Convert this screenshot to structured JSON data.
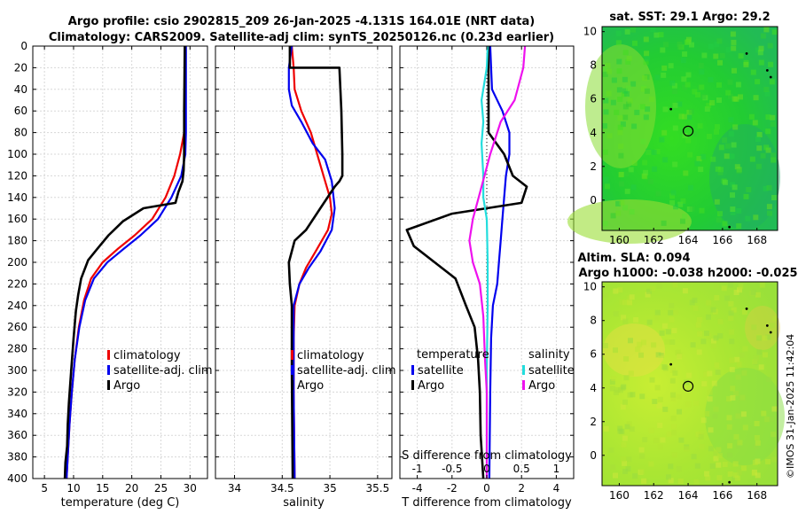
{
  "title_line1": "Argo profile: csio 2902815_209 26-Jan-2025 -4.131S 164.01E (NRT data)",
  "title_line2": "Climatology: CARS2009. Satellite-adj clim: synTS_20250126.nc (0.23d earlier)",
  "colors": {
    "red": "#ee0000",
    "blue": "#0000ee",
    "black": "#000000",
    "cyan": "#22dddd",
    "magenta": "#ee11ee"
  },
  "chart_data": [
    {
      "id": "temperature",
      "type": "line",
      "xlabel": "temperature (deg C)",
      "ylabel": "",
      "xlim": [
        3,
        33
      ],
      "ylim": [
        400,
        0
      ],
      "xticks": [
        5,
        10,
        15,
        20,
        25,
        30
      ],
      "yticks": [
        0,
        20,
        40,
        60,
        80,
        100,
        120,
        140,
        160,
        180,
        200,
        220,
        240,
        260,
        280,
        300,
        320,
        340,
        360,
        380,
        400
      ],
      "legend": [
        "climatology",
        "satellite-adj. clim",
        "Argo"
      ],
      "series": [
        {
          "name": "climatology",
          "color": "red",
          "width": 2.2,
          "points": [
            [
              29.2,
              0
            ],
            [
              29.2,
              40
            ],
            [
              29,
              80
            ],
            [
              28.3,
              100
            ],
            [
              27.3,
              120
            ],
            [
              25.8,
              140
            ],
            [
              23.5,
              160
            ],
            [
              20.5,
              175
            ],
            [
              17.5,
              188
            ],
            [
              15,
              200
            ],
            [
              13,
              215
            ],
            [
              11.8,
              235
            ],
            [
              10.9,
              260
            ],
            [
              10.2,
              290
            ],
            [
              9.7,
              320
            ],
            [
              9.3,
              350
            ],
            [
              9.0,
              380
            ],
            [
              8.8,
              400
            ]
          ]
        },
        {
          "name": "satellite-adj. clim",
          "color": "blue",
          "width": 2.2,
          "points": [
            [
              29.3,
              0
            ],
            [
              29.3,
              40
            ],
            [
              29.3,
              80
            ],
            [
              29.2,
              100
            ],
            [
              28.5,
              120
            ],
            [
              26.8,
              140
            ],
            [
              24.5,
              160
            ],
            [
              21.5,
              175
            ],
            [
              18.5,
              188
            ],
            [
              15.8,
              200
            ],
            [
              13.5,
              215
            ],
            [
              12,
              235
            ],
            [
              11,
              260
            ],
            [
              10.2,
              290
            ],
            [
              9.7,
              320
            ],
            [
              9.3,
              350
            ],
            [
              9.0,
              380
            ],
            [
              8.8,
              400
            ]
          ]
        },
        {
          "name": "Argo",
          "color": "black",
          "width": 2.6,
          "points": [
            [
              29.1,
              0
            ],
            [
              29,
              60
            ],
            [
              29,
              100
            ],
            [
              28.9,
              115
            ],
            [
              28.7,
              125
            ],
            [
              28,
              135
            ],
            [
              27.5,
              145
            ],
            [
              22,
              150
            ],
            [
              18.5,
              162
            ],
            [
              16,
              175
            ],
            [
              14,
              188
            ],
            [
              12.5,
              198
            ],
            [
              11.3,
              215
            ],
            [
              10.8,
              230
            ],
            [
              10.4,
              245
            ],
            [
              10,
              270
            ],
            [
              9.6,
              300
            ],
            [
              9.2,
              330
            ],
            [
              9,
              350
            ],
            [
              8.9,
              370
            ],
            [
              8.6,
              385
            ],
            [
              8.5,
              400
            ]
          ]
        }
      ]
    },
    {
      "id": "salinity",
      "type": "line",
      "xlabel": "salinity",
      "xlim": [
        33.8,
        35.65
      ],
      "ylim": [
        400,
        0
      ],
      "xticks": [
        34,
        34.5,
        35,
        35.5
      ],
      "legend": [
        "climatology",
        "satellite-adj. clim",
        "Argo"
      ],
      "series": [
        {
          "name": "climatology",
          "color": "red",
          "width": 2.2,
          "points": [
            [
              34.6,
              0
            ],
            [
              34.62,
              20
            ],
            [
              34.63,
              40
            ],
            [
              34.7,
              60
            ],
            [
              34.8,
              80
            ],
            [
              34.9,
              110
            ],
            [
              35,
              140
            ],
            [
              35.02,
              155
            ],
            [
              34.98,
              170
            ],
            [
              34.85,
              190
            ],
            [
              34.75,
              205
            ],
            [
              34.68,
              220
            ],
            [
              34.63,
              240
            ],
            [
              34.62,
              270
            ],
            [
              34.62,
              320
            ],
            [
              34.63,
              400
            ]
          ]
        },
        {
          "name": "satellite-adj. clim",
          "color": "blue",
          "width": 2.2,
          "points": [
            [
              34.6,
              0
            ],
            [
              34.57,
              20
            ],
            [
              34.57,
              40
            ],
            [
              34.6,
              55
            ],
            [
              34.7,
              70
            ],
            [
              34.82,
              90
            ],
            [
              34.95,
              105
            ],
            [
              35.02,
              125
            ],
            [
              35.05,
              150
            ],
            [
              35.02,
              170
            ],
            [
              34.9,
              190
            ],
            [
              34.78,
              205
            ],
            [
              34.68,
              220
            ],
            [
              34.62,
              240
            ],
            [
              34.62,
              270
            ],
            [
              34.62,
              320
            ],
            [
              34.63,
              400
            ]
          ]
        },
        {
          "name": "Argo",
          "color": "black",
          "width": 2.6,
          "points": [
            [
              34.58,
              0
            ],
            [
              34.58,
              20
            ],
            [
              35.1,
              20
            ],
            [
              35.12,
              60
            ],
            [
              35.13,
              100
            ],
            [
              35.13,
              120
            ],
            [
              35.1,
              125
            ],
            [
              35.05,
              130
            ],
            [
              34.9,
              150
            ],
            [
              34.75,
              170
            ],
            [
              34.63,
              180
            ],
            [
              34.57,
              200
            ],
            [
              34.58,
              220
            ],
            [
              34.6,
              240
            ],
            [
              34.6,
              300
            ],
            [
              34.61,
              400
            ]
          ]
        }
      ]
    },
    {
      "id": "difference",
      "type": "line",
      "xlabel": "T difference from climatology",
      "xlabel_top": "S difference from climatology",
      "xlim": [
        -5,
        5
      ],
      "ylim": [
        400,
        0
      ],
      "xticks": [
        -4,
        -2,
        0,
        2,
        4
      ],
      "xticks_top": [
        "-1",
        "-0.5",
        "0",
        "0.5",
        "1"
      ],
      "legend_left_title": "temperature",
      "legend_right_title": "salinity",
      "legend_left": [
        "satellite",
        "Argo"
      ],
      "legend_right": [
        "satellite",
        "Argo"
      ],
      "series": [
        {
          "name": "temperature satellite",
          "color": "blue",
          "width": 2.2,
          "points": [
            [
              0.2,
              0
            ],
            [
              0.3,
              40
            ],
            [
              0.9,
              60
            ],
            [
              1.3,
              80
            ],
            [
              1.3,
              100
            ],
            [
              1.1,
              120
            ],
            [
              1.0,
              140
            ],
            [
              0.9,
              160
            ],
            [
              0.8,
              180
            ],
            [
              0.7,
              200
            ],
            [
              0.6,
              220
            ],
            [
              0.35,
              240
            ],
            [
              0.25,
              270
            ],
            [
              0.2,
              320
            ],
            [
              0.15,
              400
            ]
          ]
        },
        {
          "name": "temperature Argo",
          "color": "black",
          "width": 2.6,
          "points": [
            [
              0.1,
              0
            ],
            [
              0.1,
              80
            ],
            [
              1.0,
              100
            ],
            [
              1.5,
              120
            ],
            [
              2.3,
              130
            ],
            [
              2,
              145
            ],
            [
              -2,
              155
            ],
            [
              -4.6,
              170
            ],
            [
              -4.2,
              185
            ],
            [
              -3,
              200
            ],
            [
              -1.8,
              215
            ],
            [
              -1.2,
              240
            ],
            [
              -0.7,
              260
            ],
            [
              -0.5,
              290
            ],
            [
              -0.4,
              320
            ],
            [
              -0.35,
              360
            ],
            [
              -0.2,
              400
            ]
          ]
        },
        {
          "name": "salinity satellite",
          "color": "cyan",
          "width": 2.2,
          "points": [
            [
              0.05,
              0
            ],
            [
              0,
              20
            ],
            [
              -0.3,
              50
            ],
            [
              -0.2,
              70
            ],
            [
              -0.3,
              90
            ],
            [
              -0.2,
              120
            ],
            [
              -0.2,
              140
            ],
            [
              0,
              160
            ],
            [
              0.05,
              200
            ],
            [
              0.05,
              240
            ],
            [
              0,
              300
            ],
            [
              0,
              400
            ]
          ]
        },
        {
          "name": "salinity Argo",
          "color": "magenta",
          "width": 2.2,
          "points": [
            [
              2.2,
              0
            ],
            [
              2.1,
              20
            ],
            [
              1.6,
              50
            ],
            [
              0.8,
              70
            ],
            [
              0.2,
              100
            ],
            [
              -0.3,
              130
            ],
            [
              -0.8,
              160
            ],
            [
              -1.0,
              180
            ],
            [
              -0.8,
              200
            ],
            [
              -0.4,
              220
            ],
            [
              -0.2,
              250
            ],
            [
              -0.1,
              290
            ],
            [
              0,
              320
            ],
            [
              0,
              400
            ]
          ]
        }
      ]
    },
    {
      "id": "sst_map",
      "type": "heatmap",
      "title": "sat. SST: 29.1 Argo: 29.2",
      "xticks": [
        160,
        162,
        164,
        166,
        168
      ],
      "yticks": [
        0,
        2,
        4,
        6,
        8,
        10
      ],
      "xlim": [
        159,
        169.2
      ],
      "ylim": [
        -1.8,
        10.3
      ],
      "argo_marker": [
        164,
        4.1
      ]
    },
    {
      "id": "sla_map",
      "type": "heatmap",
      "title": "Altim. SLA: 0.094",
      "subtitle": "Argo h1000: -0.038 h2000: -0.025",
      "xticks": [
        160,
        162,
        164,
        166,
        168
      ],
      "yticks": [
        0,
        2,
        4,
        6,
        8,
        10
      ],
      "xlim": [
        159,
        169.2
      ],
      "ylim": [
        -1.8,
        10.3
      ],
      "argo_marker": [
        164,
        4.1
      ]
    }
  ],
  "footer": "©IMOS 31-Jan-2025 11:42:04"
}
